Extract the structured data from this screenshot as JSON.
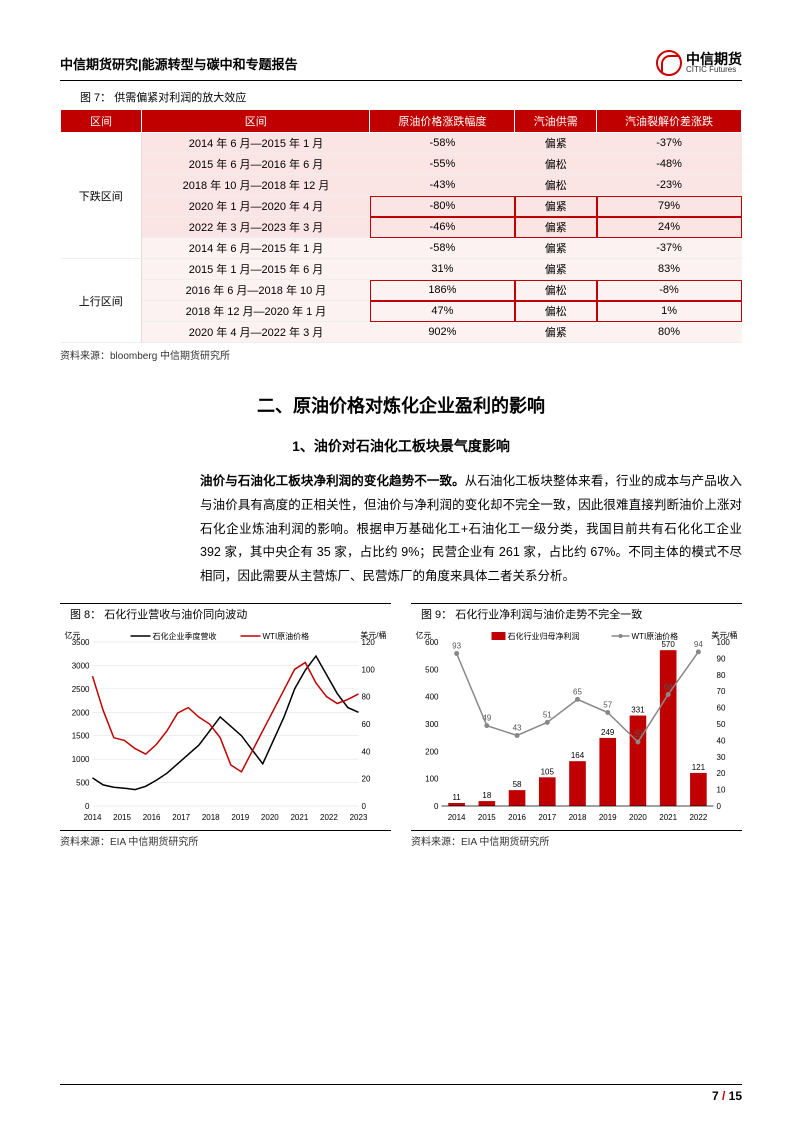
{
  "header": {
    "title": "中信期货研究|能源转型与碳中和专题报告",
    "logo_cn": "中信期货",
    "logo_en": "CITIC Futures"
  },
  "fig7": {
    "label": "图 7：    供需偏紧对利润的放大效应",
    "columns": [
      "区间",
      "区间",
      "原油价格涨跌幅度",
      "汽油供需",
      "汽油裂解价差涨跌"
    ],
    "groups": [
      {
        "cat": "下跌区间",
        "rows": [
          {
            "period": "2014 年 6 月—2015 年 1 月",
            "pct": "-58%",
            "supply": "偏紧",
            "crack": "-37%",
            "shade": "pink"
          },
          {
            "period": "2015 年 6 月—2016 年 6 月",
            "pct": "-55%",
            "supply": "偏松",
            "crack": "-48%",
            "shade": "pink"
          },
          {
            "period": "2018 年 10 月—2018 年 12 月",
            "pct": "-43%",
            "supply": "偏松",
            "crack": "-23%",
            "shade": "pink"
          },
          {
            "period": "2020 年 1 月—2020 年 4 月",
            "pct": "-80%",
            "supply": "偏紧",
            "crack": "79%",
            "shade": "pink",
            "hl": true
          },
          {
            "period": "2022 年 3 月—2023 年 3 月",
            "pct": "-46%",
            "supply": "偏紧",
            "crack": "24%",
            "shade": "pink",
            "hl": true
          },
          {
            "period": "2014 年 6 月—2015 年 1 月",
            "pct": "-58%",
            "supply": "偏紧",
            "crack": "-37%",
            "shade": "light"
          }
        ]
      },
      {
        "cat": "上行区间",
        "rows": [
          {
            "period": "2015 年 1 月—2015 年 6 月",
            "pct": "31%",
            "supply": "偏紧",
            "crack": "83%",
            "shade": "light"
          },
          {
            "period": "2016 年 6 月—2018 年 10 月",
            "pct": "186%",
            "supply": "偏松",
            "crack": "-8%",
            "shade": "light",
            "hl": true
          },
          {
            "period": "2018 年 12 月—2020 年 1 月",
            "pct": "47%",
            "supply": "偏松",
            "crack": "1%",
            "shade": "light",
            "hl": true
          },
          {
            "period": "2020 年 4 月—2022 年 3 月",
            "pct": "902%",
            "supply": "偏紧",
            "crack": "80%",
            "shade": "light"
          }
        ]
      }
    ],
    "source": "资料来源：bloomberg  中信期货研究所"
  },
  "section2": {
    "title": "二、原油价格对炼化企业盈利的影响",
    "sub1": "1、油价对石油化工板块景气度影响",
    "para_bold": "油价与石油化工板块净利润的变化趋势不一致。",
    "para_rest": "从石油化工板块整体来看，行业的成本与产品收入与油价具有高度的正相关性，但油价与净利润的变化却不完全一致，因此很难直接判断油价上涨对石化企业炼油利润的影响。根据申万基础化工+石油化工一级分类，我国目前共有石化化工企业 392 家，其中央企有 35 家，占比约 9%；民营企业有 261 家，占比约 67%。不同主体的模式不尽相同，因此需要从主营炼厂、民营炼厂的角度来具体二者关系分析。"
  },
  "fig8": {
    "label": "图 8：     石化行业营收与油价同向波动",
    "y_left_label": "亿元",
    "y_right_label": "美元/桶",
    "legend": [
      "石化企业季度营收",
      "WTI原油价格"
    ],
    "legend_colors": [
      "#000000",
      "#c00000"
    ],
    "x_years": [
      "2014",
      "2015",
      "2016",
      "2017",
      "2018",
      "2019",
      "2020",
      "2021",
      "2022",
      "2023"
    ],
    "y_left_ticks": [
      0,
      500,
      1000,
      1500,
      2000,
      2500,
      3000,
      3500
    ],
    "y_right_ticks": [
      0,
      20,
      40,
      60,
      80,
      100,
      120
    ],
    "series_rev": [
      600,
      450,
      400,
      380,
      350,
      420,
      550,
      700,
      900,
      1100,
      1300,
      1600,
      1900,
      1700,
      1500,
      1200,
      900,
      1400,
      1900,
      2500,
      2900,
      3200,
      2800,
      2400,
      2100,
      2000
    ],
    "series_wti": [
      95,
      70,
      50,
      48,
      42,
      38,
      45,
      55,
      68,
      72,
      65,
      60,
      50,
      30,
      25,
      40,
      55,
      70,
      85,
      100,
      105,
      90,
      80,
      75,
      78,
      82
    ],
    "source": "资料来源：EIA 中信期货研究所",
    "bg": "#ffffff",
    "grid": "#dddddd"
  },
  "fig9": {
    "label": "图 9：     石化行业净利润与油价走势不完全一致",
    "y_left_label": "亿元",
    "y_right_label": "美元/桶",
    "legend": [
      "石化行业归母净利润",
      "WTI原油价格"
    ],
    "legend_colors": [
      "#c00000",
      "#888888"
    ],
    "x_years": [
      "2014",
      "2015",
      "2016",
      "2017",
      "2018",
      "2019",
      "2020",
      "2021",
      "2022"
    ],
    "y_left_ticks": [
      0,
      100,
      200,
      300,
      400,
      500,
      600
    ],
    "y_right_ticks": [
      0,
      10,
      20,
      30,
      40,
      50,
      60,
      70,
      80,
      90,
      100
    ],
    "bars": [
      11,
      18,
      58,
      105,
      164,
      249,
      331,
      570,
      121
    ],
    "bar_labels": [
      "11",
      "18",
      "58",
      "105",
      "164",
      "249",
      "331",
      "570",
      "121"
    ],
    "wti_line": [
      93,
      49,
      43,
      51,
      65,
      57,
      39,
      68,
      94
    ],
    "wti_labels": [
      "93",
      "49",
      "43",
      "51",
      "65",
      "57",
      "39",
      "68",
      "94"
    ],
    "bar_color": "#c00000",
    "line_color": "#888888",
    "source": "资料来源：EIA 中信期货研究所",
    "bg": "#ffffff"
  },
  "footer": {
    "page": "7",
    "total": "15"
  }
}
